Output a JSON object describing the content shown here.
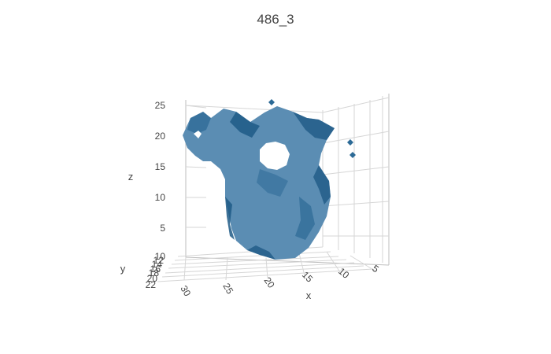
{
  "chart_data": {
    "type": "mesh3d",
    "title": "486_3",
    "color": "#2c6a96",
    "color_light": "#5b8db3",
    "color_dark": "#1f5a86",
    "axes": {
      "x": {
        "title": "x",
        "ticks": [
          "30",
          "25",
          "20",
          "15",
          "10",
          "5"
        ]
      },
      "y": {
        "title": "y",
        "ticks": [
          "10",
          "12",
          "14",
          "16",
          "18",
          "20",
          "22"
        ]
      },
      "z": {
        "title": "z",
        "ticks": [
          "25",
          "20",
          "15",
          "10",
          "5"
        ]
      }
    },
    "grid": true,
    "legend": "none"
  }
}
